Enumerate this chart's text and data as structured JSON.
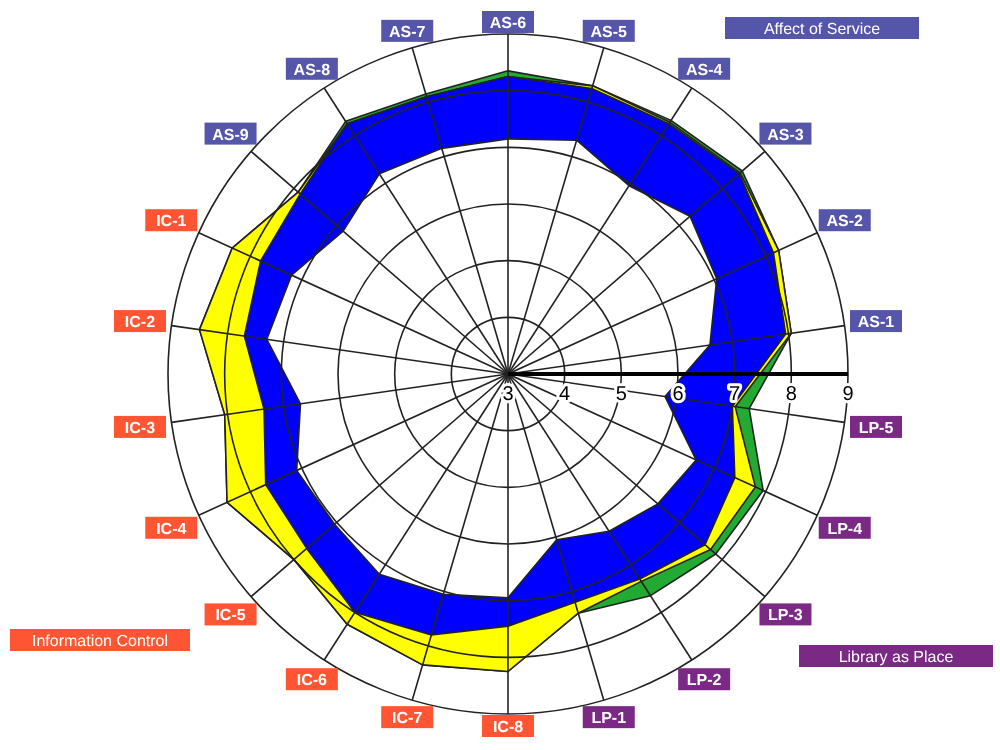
{
  "chart_data": {
    "type": "radar",
    "categories": [
      "AS-6",
      "AS-5",
      "AS-4",
      "AS-3",
      "AS-2",
      "AS-1",
      "LP-5",
      "LP-4",
      "LP-3",
      "LP-2",
      "LP-1",
      "IC-8",
      "IC-7",
      "IC-6",
      "IC-5",
      "IC-4",
      "IC-3",
      "IC-2",
      "IC-1",
      "AS-9",
      "AS-8",
      "AS-7"
    ],
    "colors": [
      "#5555aa",
      "#5555aa",
      "#5555aa",
      "#5555aa",
      "#5555aa",
      "#5555aa",
      "#7a2a85",
      "#7a2a85",
      "#7a2a85",
      "#7a2a85",
      "#7a2a85",
      "#ff5533",
      "#ff5533",
      "#ff5533",
      "#ff5533",
      "#ff5533",
      "#ff5533",
      "#ff5533",
      "#ff5533",
      "#5555aa",
      "#5555aa",
      "#5555aa"
    ],
    "series": [
      {
        "color": "#22aa33",
        "values": [
          8.35,
          8.3,
          8.32,
          8.47,
          8.25,
          8.05,
          7.3,
          7.95,
          7.85,
          7.65,
          7.4,
          8.25,
          8.35,
          8.25,
          8.0,
          8.45,
          8.05,
          8.5,
          8.35,
          7.9,
          8.3,
          8.15
        ]
      },
      {
        "color": "#ffff00",
        "values": [
          8.25,
          8.3,
          8.28,
          8.42,
          8.25,
          8.05,
          7.05,
          7.8,
          7.73,
          7.35,
          7.4,
          8.25,
          8.35,
          8.25,
          8.0,
          8.45,
          8.05,
          8.5,
          8.35,
          7.9,
          8.25,
          8.1
        ]
      },
      {
        "color": "#0000ff",
        "values": [
          8.25,
          8.25,
          8.25,
          8.4,
          8.15,
          7.95,
          7.0,
          7.4,
          7.6,
          7.3,
          7.2,
          7.45,
          7.8,
          8.0,
          7.7,
          7.7,
          7.35,
          7.7,
          7.8,
          7.85,
          8.25,
          8.1
        ]
      },
      {
        "color": "#ffffff",
        "values": [
          7.15,
          7.3,
          6.95,
          7.25,
          7.05,
          6.6,
          5.8,
          6.65,
          6.5,
          6.3,
          6.05,
          6.95,
          7.05,
          7.2,
          7.05,
          7.1,
          6.7,
          7.3,
          7.2,
          6.85,
          7.2,
          7.15
        ]
      }
    ],
    "ylim": [
      3,
      9
    ],
    "yticks": [
      3,
      4,
      5,
      6,
      7,
      8,
      9
    ],
    "grid": true,
    "annotations": [
      "Affect of Service",
      "Information Control",
      "Library as Place"
    ]
  }
}
